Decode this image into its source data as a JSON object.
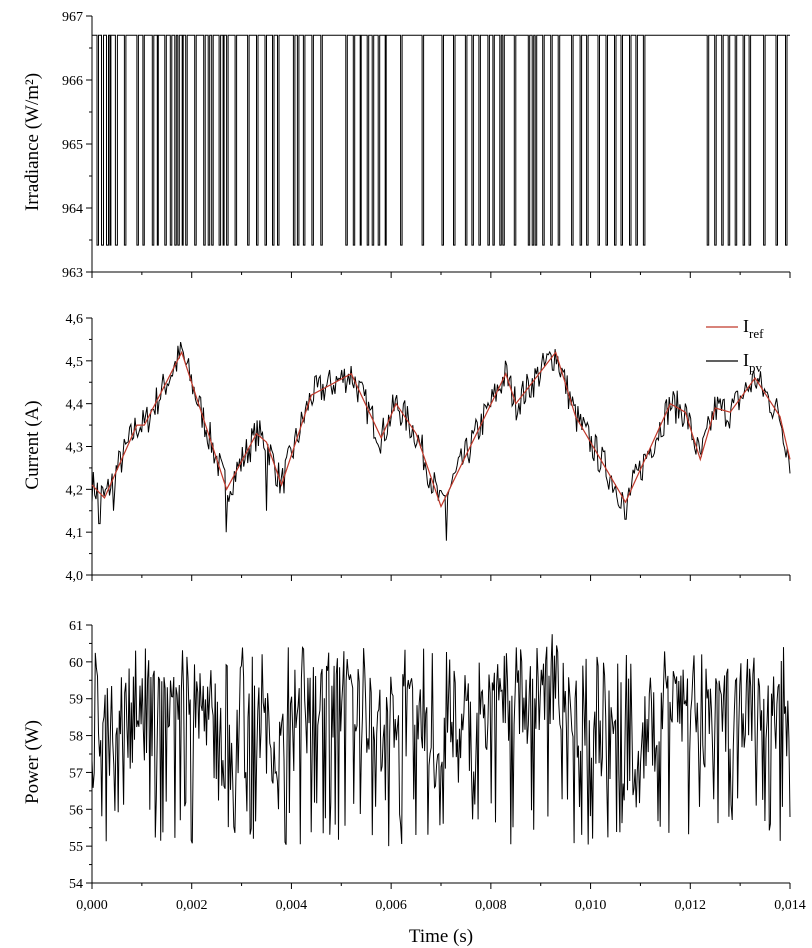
{
  "figure": {
    "shared_xlabel": "Time (s)",
    "x_ticks": [
      "0,000",
      "0,002",
      "0,004",
      "0,006",
      "0,008",
      "0,010",
      "0,012",
      "0,014"
    ]
  },
  "chart_data": [
    {
      "type": "line",
      "ylabel": "Irradiance (W/m²)",
      "xlim": [
        0,
        0.014
      ],
      "ylim": [
        963,
        967
      ],
      "y_ticks": [
        "963",
        "964",
        "965",
        "966",
        "967"
      ],
      "grid": false,
      "series": [
        {
          "color": "#000000",
          "levels": [
            963.42,
            966.7
          ],
          "low_intervals": [
            [
              0.0001,
              0.00013
            ],
            [
              0.00019,
              0.00023
            ],
            [
              0.00029,
              0.00033
            ],
            [
              0.00036,
              0.00038
            ],
            [
              0.00047,
              0.00051
            ],
            [
              0.00065,
              0.00068
            ],
            [
              0.0009,
              0.00093
            ],
            [
              0.00102,
              0.00105
            ],
            [
              0.00121,
              0.00124
            ],
            [
              0.00131,
              0.00133
            ],
            [
              0.00146,
              0.00149
            ],
            [
              0.00157,
              0.0016
            ],
            [
              0.00166,
              0.00169
            ],
            [
              0.00172,
              0.00175
            ],
            [
              0.00181,
              0.00183
            ],
            [
              0.00188,
              0.00191
            ],
            [
              0.00206,
              0.00209
            ],
            [
              0.00224,
              0.00227
            ],
            [
              0.00233,
              0.00236
            ],
            [
              0.0024,
              0.00243
            ],
            [
              0.00255,
              0.00258
            ],
            [
              0.00263,
              0.00265
            ],
            [
              0.0027,
              0.00273
            ],
            [
              0.00287,
              0.0029
            ],
            [
              0.00312,
              0.00315
            ],
            [
              0.0033,
              0.00333
            ],
            [
              0.00347,
              0.0035
            ],
            [
              0.00362,
              0.00365
            ],
            [
              0.00372,
              0.00375
            ],
            [
              0.00404,
              0.00407
            ],
            [
              0.00412,
              0.00415
            ],
            [
              0.00424,
              0.00427
            ],
            [
              0.00441,
              0.00444
            ],
            [
              0.00459,
              0.00462
            ],
            [
              0.00509,
              0.00512
            ],
            [
              0.00524,
              0.00527
            ],
            [
              0.00538,
              0.0054
            ],
            [
              0.00552,
              0.00555
            ],
            [
              0.00562,
              0.00565
            ],
            [
              0.00574,
              0.00577
            ],
            [
              0.00588,
              0.0059
            ],
            [
              0.00619,
              0.00622
            ],
            [
              0.00662,
              0.00665
            ],
            [
              0.00702,
              0.00705
            ],
            [
              0.00725,
              0.00728
            ],
            [
              0.00749,
              0.00752
            ],
            [
              0.00762,
              0.00765
            ],
            [
              0.00776,
              0.00779
            ],
            [
              0.00794,
              0.00797
            ],
            [
              0.00804,
              0.00807
            ],
            [
              0.00818,
              0.00821
            ],
            [
              0.00824,
              0.00827
            ],
            [
              0.00847,
              0.0085
            ],
            [
              0.00875,
              0.00878
            ],
            [
              0.00883,
              0.00886
            ],
            [
              0.00889,
              0.00892
            ],
            [
              0.00904,
              0.00907
            ],
            [
              0.0092,
              0.00923
            ],
            [
              0.00935,
              0.00938
            ],
            [
              0.00962,
              0.00965
            ],
            [
              0.00979,
              0.00982
            ],
            [
              0.00992,
              0.00995
            ],
            [
              0.01015,
              0.01018
            ],
            [
              0.01031,
              0.01034
            ],
            [
              0.01048,
              0.01051
            ],
            [
              0.01061,
              0.01064
            ],
            [
              0.01078,
              0.01081
            ],
            [
              0.01091,
              0.01094
            ],
            [
              0.01106,
              0.01109
            ],
            [
              0.01234,
              0.01237
            ],
            [
              0.01249,
              0.01252
            ],
            [
              0.01263,
              0.01266
            ],
            [
              0.01276,
              0.01279
            ],
            [
              0.0129,
              0.01293
            ],
            [
              0.01306,
              0.01309
            ],
            [
              0.01318,
              0.01321
            ],
            [
              0.01347,
              0.0135
            ],
            [
              0.01372,
              0.01375
            ],
            [
              0.01391,
              0.01394
            ]
          ]
        }
      ]
    },
    {
      "type": "line",
      "ylabel": "Current (A)",
      "xlim": [
        0,
        0.014
      ],
      "ylim": [
        4.0,
        4.6
      ],
      "y_ticks": [
        "4,0",
        "4,1",
        "4,2",
        "4,3",
        "4,4",
        "4,5",
        "4,6"
      ],
      "grid": false,
      "legend_placement": "top-right",
      "series": [
        {
          "name": "I",
          "subscript": "ref",
          "color": "#c0392b",
          "x": [
            0,
            0.00025,
            0.0009,
            0.00105,
            0.0018,
            0.0027,
            0.0033,
            0.0035,
            0.0038,
            0.0044,
            0.0052,
            0.0058,
            0.0061,
            0.0065,
            0.007,
            0.0083,
            0.0085,
            0.0093,
            0.0097,
            0.0107,
            0.0116,
            0.0119,
            0.0122,
            0.0125,
            0.0128,
            0.0133,
            0.0138,
            0.014
          ],
          "y": [
            4.21,
            4.18,
            4.35,
            4.35,
            4.52,
            4.2,
            4.33,
            4.31,
            4.21,
            4.42,
            4.47,
            4.32,
            4.4,
            4.33,
            4.16,
            4.47,
            4.4,
            4.52,
            4.37,
            4.17,
            4.4,
            4.38,
            4.27,
            4.39,
            4.38,
            4.46,
            4.37,
            4.27
          ]
        },
        {
          "name": "I",
          "subscript": "pv",
          "color": "#000000",
          "noise_amplitude": 0.04,
          "noise_points": 520,
          "dips": [
            [
              0.00015,
              4.12
            ],
            [
              0.00043,
              4.15
            ],
            [
              0.0027,
              4.1
            ],
            [
              0.0035,
              4.15
            ],
            [
              0.0071,
              4.08
            ],
            [
              0.0107,
              4.13
            ]
          ]
        }
      ]
    },
    {
      "type": "line",
      "ylabel": "Power (W)",
      "xlim": [
        0,
        0.014
      ],
      "ylim": [
        54,
        61
      ],
      "y_ticks": [
        "54",
        "55",
        "56",
        "57",
        "58",
        "59",
        "60",
        "61"
      ],
      "grid": false,
      "series": [
        {
          "color": "#000000",
          "noise_points": 640,
          "upper_envelope": 60.4,
          "lower_envelope": 55.0,
          "max_point": [
            0.00923,
            60.75
          ],
          "min_point": [
            0.00595,
            55.0
          ]
        }
      ]
    }
  ]
}
